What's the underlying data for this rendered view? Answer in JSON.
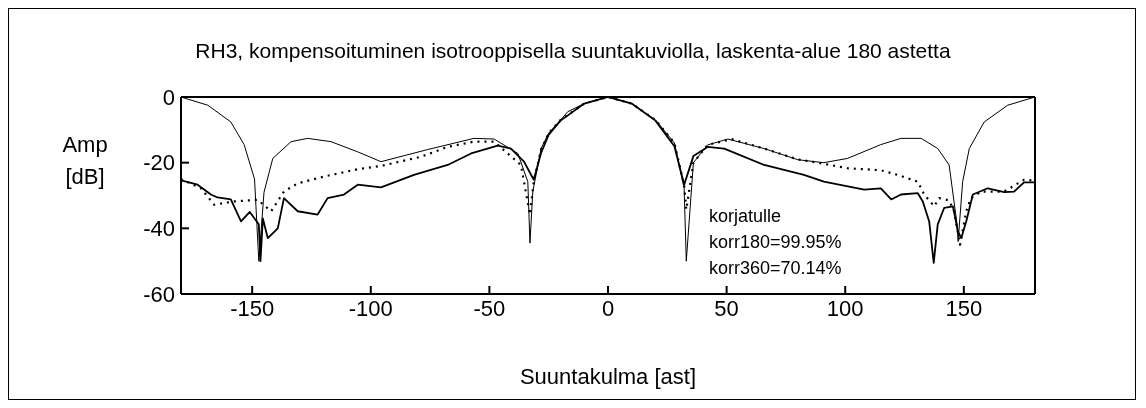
{
  "chart_data": {
    "type": "line",
    "title": "RH3, kompensoituminen isotrooppisella suuntakuviolla, laskenta-alue 180 astetta",
    "xlabel": "Suuntakulma [ast]",
    "ylabel": "Amp [dB]",
    "annotations": [
      "korjatulle",
      "korr180=99.95%",
      "korr360=70.14%"
    ],
    "xlim": [
      -180,
      180
    ],
    "xticks": [
      -150,
      -100,
      -50,
      0,
      50,
      100,
      150
    ],
    "ylim": [
      -60,
      0
    ],
    "yticks": [
      -60,
      -40,
      -20,
      0
    ],
    "marker": "none",
    "series": [
      {
        "color": "#000000",
        "line_style": "solid",
        "x": [
          -180,
          -168.7,
          -159,
          -153.4,
          -149,
          -147.2,
          -145,
          -141.3,
          -133.6,
          -126.6,
          -116.8,
          -105.5,
          -95.7,
          -76,
          -56.5,
          -48,
          -38,
          -33.8,
          -32.9,
          -31.7,
          -28.2,
          -25,
          -20,
          -17,
          -10,
          0,
          10,
          20,
          28,
          32.1,
          33,
          36,
          42,
          50.5,
          65.8,
          80,
          91,
          101,
          115,
          123.5,
          132,
          139,
          143.8,
          147,
          147.6,
          149.5,
          152.3,
          158.6,
          168.5,
          180
        ],
        "values": [
          0,
          -2.5,
          -7.6,
          -14.5,
          -25,
          -50,
          -29,
          -18.7,
          -13.6,
          -12.6,
          -13.6,
          -16.7,
          -19.7,
          -16,
          -12.6,
          -12.8,
          -17.2,
          -25.8,
          -44.5,
          -28.8,
          -15.7,
          -11,
          -7,
          -4.5,
          -2,
          0,
          -2,
          -7,
          -14,
          -27.8,
          -50,
          -20,
          -14.6,
          -12.8,
          -15.7,
          -19.1,
          -20,
          -18.7,
          -14.5,
          -12.6,
          -12.6,
          -15.7,
          -20.7,
          -38,
          -44,
          -25.8,
          -15.7,
          -7.6,
          -2.5,
          0
        ]
      },
      {
        "color": "#000000",
        "line_style": "dotted",
        "x": [
          -180,
          -171.6,
          -166,
          -157.6,
          -147.7,
          -142,
          -136.6,
          -130.8,
          -119.6,
          -105.5,
          -95.7,
          -78.8,
          -67.6,
          -56.5,
          -48,
          -36.7,
          -32.9,
          -31.3,
          -28.2,
          -25,
          -20,
          -10,
          0,
          10,
          20,
          28,
          32.1,
          33,
          36,
          42,
          52,
          65.8,
          80,
          88.4,
          101,
          115,
          122,
          130.6,
          133.3,
          137.5,
          139.6,
          143.8,
          145.9,
          148.4,
          151,
          153,
          157.3,
          167,
          175.4,
          180
        ],
        "values": [
          -25,
          -27.8,
          -32.8,
          -31.8,
          -31.3,
          -34.8,
          -28.8,
          -26.3,
          -24.2,
          -22,
          -21,
          -18.2,
          -15.2,
          -13.6,
          -13.6,
          -20.7,
          -35.8,
          -25.8,
          -16,
          -11,
          -7,
          -2,
          0,
          -2,
          -7,
          -14,
          -27,
          -34.3,
          -20,
          -14.6,
          -12.8,
          -15.7,
          -19,
          -20,
          -21.7,
          -22.3,
          -23.7,
          -25.8,
          -29.7,
          -33.3,
          -30.8,
          -31.5,
          -34.8,
          -45,
          -34.8,
          -30.8,
          -28.8,
          -28.8,
          -25.2,
          -25.5
        ]
      },
      {
        "color": "#000000",
        "line_style": "solid",
        "x": [
          -180,
          -173,
          -167.4,
          -164.6,
          -159,
          -154.7,
          -151,
          -147.2,
          -146.5,
          -145.5,
          -143.4,
          -139.2,
          -136.6,
          -130.8,
          -122.4,
          -118.2,
          -111.3,
          -105.5,
          -95.7,
          -81.8,
          -67.6,
          -57.7,
          -46.5,
          -40.9,
          -35.4,
          -31.3,
          -28.2,
          -25,
          -20,
          -10,
          0,
          10,
          20,
          28,
          32.1,
          36,
          42,
          49,
          65.8,
          82.6,
          91,
          108,
          115,
          119.4,
          123.5,
          130.6,
          132.7,
          135.4,
          137.3,
          139,
          141.7,
          145.4,
          147.5,
          148.9,
          151,
          153.8,
          160.1,
          167,
          171.2,
          175.4,
          180
        ],
        "values": [
          -25.4,
          -26.7,
          -29.7,
          -30.6,
          -31.2,
          -37.9,
          -35,
          -38.8,
          -50,
          -37,
          -43,
          -40,
          -30.8,
          -34.8,
          -35.8,
          -30.8,
          -29.7,
          -26.7,
          -27.5,
          -23.7,
          -20.7,
          -17.2,
          -14.8,
          -15.7,
          -19.7,
          -25.2,
          -17,
          -11.5,
          -7.2,
          -2,
          0,
          -2,
          -7.2,
          -15,
          -26.7,
          -18,
          -15.2,
          -15.7,
          -20.7,
          -23.7,
          -25.8,
          -28.2,
          -27.8,
          -31.2,
          -29.7,
          -29.3,
          -31.8,
          -37.9,
          -50.5,
          -38.8,
          -33.8,
          -33.3,
          -40.9,
          -43,
          -37.9,
          -29.7,
          -27.8,
          -29,
          -28.8,
          -26,
          -26
        ]
      }
    ]
  }
}
